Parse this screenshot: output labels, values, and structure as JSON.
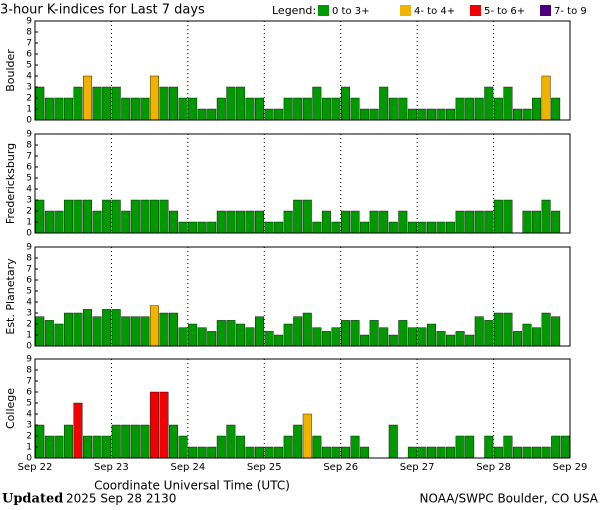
{
  "chart_data": {
    "type": "bar",
    "title": "3-hour K-indices for Last 7 days",
    "legend_title": "Legend:",
    "legend": [
      {
        "label": "0 to 3+",
        "color": "#009900"
      },
      {
        "label": "4- to 4+",
        "color": "#f0b400"
      },
      {
        "label": "5- to 6+",
        "color": "#f00000"
      },
      {
        "label": "7- to 9",
        "color": "#4b0082"
      }
    ],
    "xlabel": "Coordinate Universal Time (UTC)",
    "xticks": [
      "Sep 22",
      "Sep 23",
      "Sep 24",
      "Sep 25",
      "Sep 26",
      "Sep 27",
      "Sep 28",
      "Sep 29"
    ],
    "ylim": [
      0,
      9
    ],
    "yticks": [
      0,
      1,
      2,
      3,
      4,
      5,
      6,
      7,
      8,
      9
    ],
    "panels": [
      {
        "name": "Boulder",
        "values": [
          3,
          2,
          2,
          2,
          3,
          4,
          3,
          3,
          3,
          2,
          2,
          2,
          4,
          3,
          3,
          2,
          2,
          1,
          1,
          2,
          3,
          3,
          2,
          2,
          1,
          1,
          2,
          2,
          2,
          3,
          2,
          2,
          3,
          2,
          1,
          1,
          3,
          2,
          2,
          1,
          1,
          1,
          1,
          1,
          2,
          2,
          2,
          3,
          2,
          3,
          1,
          1,
          2,
          4,
          2,
          0
        ],
        "colors": [
          "#009900",
          "#009900",
          "#009900",
          "#009900",
          "#009900",
          "#f0b400",
          "#009900",
          "#009900",
          "#009900",
          "#009900",
          "#009900",
          "#009900",
          "#f0b400",
          "#009900",
          "#009900",
          "#009900",
          "#009900",
          "#009900",
          "#009900",
          "#009900",
          "#009900",
          "#009900",
          "#009900",
          "#009900",
          "#009900",
          "#009900",
          "#009900",
          "#009900",
          "#009900",
          "#009900",
          "#009900",
          "#009900",
          "#009900",
          "#009900",
          "#009900",
          "#009900",
          "#009900",
          "#009900",
          "#009900",
          "#009900",
          "#009900",
          "#009900",
          "#009900",
          "#009900",
          "#009900",
          "#009900",
          "#009900",
          "#009900",
          "#009900",
          "#009900",
          "#009900",
          "#009900",
          "#009900",
          "#f0b400",
          "#009900",
          "#009900"
        ]
      },
      {
        "name": "Fredericksburg",
        "values": [
          3,
          2,
          2,
          3,
          3,
          3,
          2,
          3,
          3,
          2,
          3,
          3,
          3,
          3,
          2,
          1,
          1,
          1,
          1,
          2,
          2,
          2,
          2,
          2,
          1,
          1,
          2,
          3,
          3,
          1,
          2,
          1,
          2,
          2,
          1,
          2,
          2,
          1,
          2,
          1,
          1,
          1,
          1,
          1,
          2,
          2,
          2,
          2,
          3,
          3,
          0,
          2,
          2,
          3,
          2,
          0
        ],
        "colors": [
          "#009900",
          "#009900",
          "#009900",
          "#009900",
          "#009900",
          "#009900",
          "#009900",
          "#009900",
          "#009900",
          "#009900",
          "#009900",
          "#009900",
          "#009900",
          "#009900",
          "#009900",
          "#009900",
          "#009900",
          "#009900",
          "#009900",
          "#009900",
          "#009900",
          "#009900",
          "#009900",
          "#009900",
          "#009900",
          "#009900",
          "#009900",
          "#009900",
          "#009900",
          "#009900",
          "#009900",
          "#009900",
          "#009900",
          "#009900",
          "#009900",
          "#009900",
          "#009900",
          "#009900",
          "#009900",
          "#009900",
          "#009900",
          "#009900",
          "#009900",
          "#009900",
          "#009900",
          "#009900",
          "#009900",
          "#009900",
          "#009900",
          "#009900",
          "#009900",
          "#009900",
          "#009900",
          "#009900",
          "#009900",
          "#009900"
        ]
      },
      {
        "name": "Est. Planetary",
        "values": [
          2.67,
          2.33,
          2.0,
          3.0,
          3.0,
          3.33,
          2.67,
          3.33,
          3.33,
          2.67,
          2.67,
          2.67,
          3.67,
          3.0,
          3.0,
          1.67,
          2.0,
          1.67,
          1.33,
          2.33,
          2.33,
          2.0,
          1.67,
          2.67,
          1.33,
          1.0,
          2.0,
          2.67,
          3.0,
          1.67,
          1.33,
          1.67,
          2.33,
          2.33,
          1.0,
          2.33,
          1.67,
          1.0,
          2.33,
          1.67,
          1.67,
          2.0,
          1.33,
          1.0,
          1.33,
          1.0,
          2.67,
          2.33,
          3.0,
          3.0,
          1.33,
          2.0,
          1.67,
          3.0,
          2.67,
          null
        ],
        "colors": [
          "#009900",
          "#009900",
          "#009900",
          "#009900",
          "#009900",
          "#009900",
          "#009900",
          "#009900",
          "#009900",
          "#009900",
          "#009900",
          "#009900",
          "#f0b400",
          "#009900",
          "#009900",
          "#009900",
          "#009900",
          "#009900",
          "#009900",
          "#009900",
          "#009900",
          "#009900",
          "#009900",
          "#009900",
          "#009900",
          "#009900",
          "#009900",
          "#009900",
          "#009900",
          "#009900",
          "#009900",
          "#009900",
          "#009900",
          "#009900",
          "#009900",
          "#009900",
          "#009900",
          "#009900",
          "#009900",
          "#009900",
          "#009900",
          "#009900",
          "#009900",
          "#009900",
          "#009900",
          "#009900",
          "#009900",
          "#009900",
          "#009900",
          "#009900",
          "#009900",
          "#009900",
          "#009900",
          "#009900",
          "#009900",
          null
        ]
      },
      {
        "name": "College",
        "values": [
          3,
          2,
          2,
          3,
          5,
          2,
          2,
          2,
          3,
          3,
          3,
          3,
          6,
          6,
          3,
          2,
          1,
          1,
          1,
          2,
          3,
          2,
          1,
          1,
          1,
          1,
          2,
          3,
          4,
          2,
          1,
          1,
          1,
          2,
          1,
          0,
          0,
          3,
          0,
          1,
          1,
          1,
          1,
          1,
          2,
          2,
          0,
          2,
          1,
          2,
          1,
          1,
          1,
          1,
          2,
          2
        ],
        "colors": [
          "#009900",
          "#009900",
          "#009900",
          "#009900",
          "#f00000",
          "#009900",
          "#009900",
          "#009900",
          "#009900",
          "#009900",
          "#009900",
          "#009900",
          "#f00000",
          "#f00000",
          "#009900",
          "#009900",
          "#009900",
          "#009900",
          "#009900",
          "#009900",
          "#009900",
          "#009900",
          "#009900",
          "#009900",
          "#009900",
          "#009900",
          "#009900",
          "#009900",
          "#f0b400",
          "#009900",
          "#009900",
          "#009900",
          "#009900",
          "#009900",
          "#009900",
          "#009900",
          "#009900",
          "#009900",
          "#009900",
          "#009900",
          "#009900",
          "#009900",
          "#009900",
          "#009900",
          "#009900",
          "#009900",
          "#009900",
          "#009900",
          "#009900",
          "#009900",
          "#009900",
          "#009900",
          "#009900",
          "#009900",
          "#009900",
          "#009900"
        ]
      }
    ],
    "footer_label": "Updated",
    "footer_date": "2025 Sep 28 2130",
    "footer_source": "NOAA/SWPC Boulder, CO USA"
  }
}
